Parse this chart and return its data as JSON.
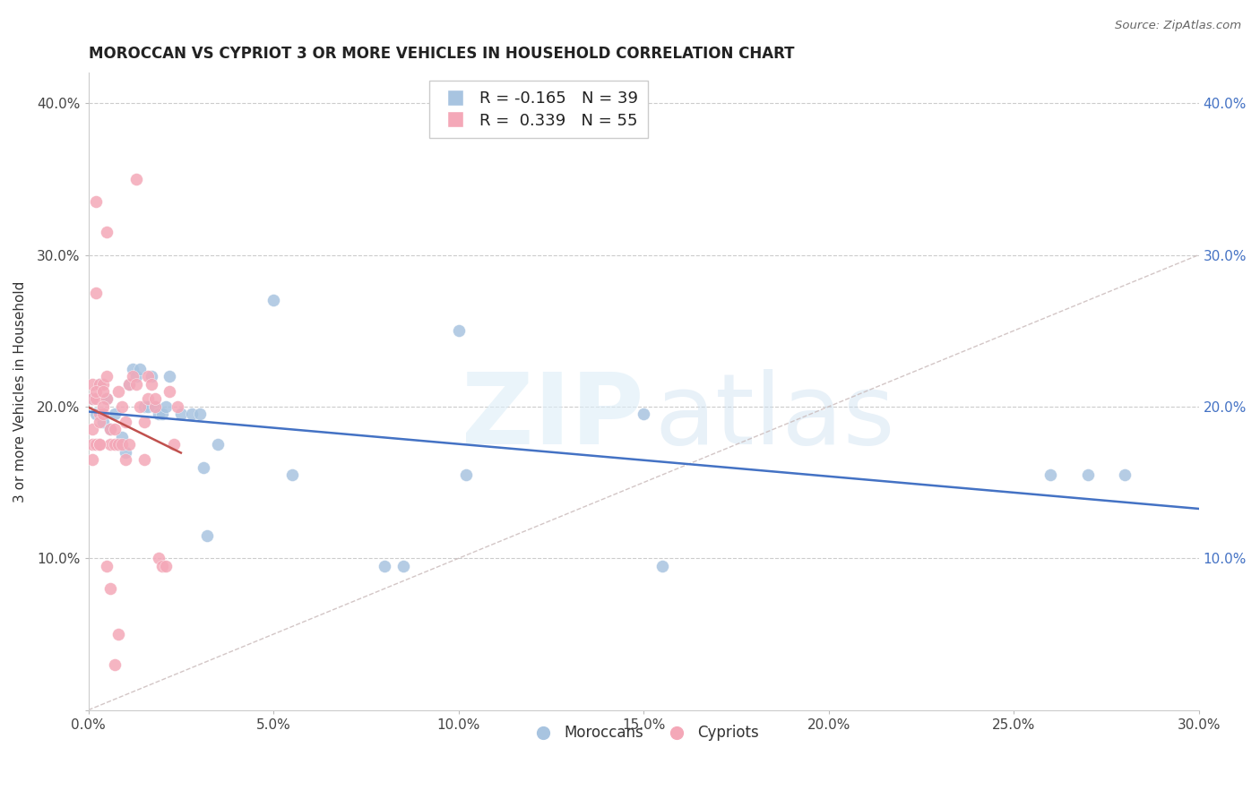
{
  "title": "MOROCCAN VS CYPRIOT 3 OR MORE VEHICLES IN HOUSEHOLD CORRELATION CHART",
  "source": "Source: ZipAtlas.com",
  "ylabel": "3 or more Vehicles in Household",
  "xlim": [
    0.0,
    0.3
  ],
  "ylim": [
    0.0,
    0.42
  ],
  "x_tick_positions": [
    0.0,
    0.05,
    0.1,
    0.15,
    0.2,
    0.25,
    0.3
  ],
  "x_tick_labels": [
    "0.0%",
    "5.0%",
    "10.0%",
    "15.0%",
    "20.0%",
    "25.0%",
    "30.0%"
  ],
  "y_tick_positions": [
    0.0,
    0.1,
    0.2,
    0.3,
    0.4
  ],
  "y_tick_labels": [
    "",
    "10.0%",
    "20.0%",
    "30.0%",
    "40.0%"
  ],
  "moroccan_color": "#a8c4e0",
  "cypriot_color": "#f4a8b8",
  "moroccan_line_color": "#4472c4",
  "cypriot_line_color": "#c0504d",
  "diagonal_color": "#c8b8b8",
  "legend_moroccan_R": "-0.165",
  "legend_moroccan_N": "39",
  "legend_cypriot_R": "0.339",
  "legend_cypriot_N": "55",
  "moroccan_x": [
    0.001,
    0.002,
    0.003,
    0.004,
    0.005,
    0.006,
    0.007,
    0.008,
    0.009,
    0.01,
    0.011,
    0.012,
    0.013,
    0.014,
    0.015,
    0.016,
    0.017,
    0.018,
    0.019,
    0.02,
    0.021,
    0.022,
    0.025,
    0.028,
    0.03,
    0.031,
    0.032,
    0.035,
    0.1,
    0.102,
    0.15,
    0.155,
    0.26,
    0.27,
    0.28,
    0.05,
    0.055,
    0.08,
    0.085
  ],
  "moroccan_y": [
    0.205,
    0.195,
    0.215,
    0.19,
    0.205,
    0.185,
    0.195,
    0.175,
    0.18,
    0.17,
    0.215,
    0.225,
    0.22,
    0.225,
    0.2,
    0.2,
    0.22,
    0.2,
    0.195,
    0.195,
    0.2,
    0.22,
    0.195,
    0.195,
    0.195,
    0.16,
    0.115,
    0.175,
    0.25,
    0.155,
    0.195,
    0.095,
    0.155,
    0.155,
    0.155,
    0.27,
    0.155,
    0.095,
    0.095
  ],
  "cypriot_x": [
    0.001,
    0.001,
    0.001,
    0.002,
    0.002,
    0.002,
    0.003,
    0.003,
    0.003,
    0.004,
    0.004,
    0.005,
    0.005,
    0.005,
    0.006,
    0.006,
    0.007,
    0.007,
    0.008,
    0.008,
    0.009,
    0.009,
    0.01,
    0.01,
    0.011,
    0.011,
    0.012,
    0.013,
    0.013,
    0.014,
    0.015,
    0.015,
    0.016,
    0.016,
    0.017,
    0.018,
    0.018,
    0.019,
    0.02,
    0.021,
    0.022,
    0.023,
    0.024,
    0.001,
    0.001,
    0.002,
    0.002,
    0.003,
    0.003,
    0.004,
    0.004,
    0.005,
    0.006,
    0.007,
    0.008
  ],
  "cypriot_y": [
    0.205,
    0.215,
    0.185,
    0.335,
    0.275,
    0.205,
    0.215,
    0.195,
    0.19,
    0.215,
    0.195,
    0.315,
    0.22,
    0.205,
    0.185,
    0.175,
    0.185,
    0.175,
    0.21,
    0.175,
    0.2,
    0.175,
    0.19,
    0.165,
    0.215,
    0.175,
    0.22,
    0.35,
    0.215,
    0.2,
    0.19,
    0.165,
    0.22,
    0.205,
    0.215,
    0.2,
    0.205,
    0.1,
    0.095,
    0.095,
    0.21,
    0.175,
    0.2,
    0.175,
    0.165,
    0.21,
    0.175,
    0.175,
    0.175,
    0.2,
    0.21,
    0.095,
    0.08,
    0.03,
    0.05
  ]
}
